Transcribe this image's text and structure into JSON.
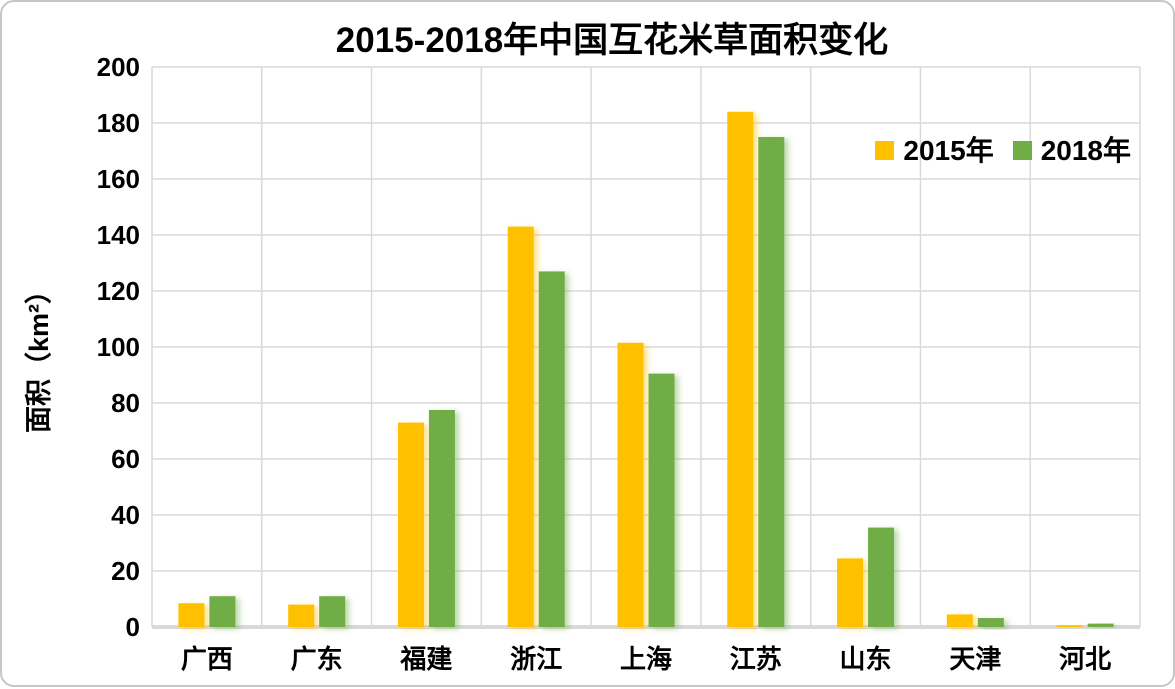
{
  "chart_data": {
    "type": "bar",
    "title": "2015-2018年中国互花米草面积变化",
    "ylabel": "面积（km²）",
    "xlabel": "",
    "categories": [
      "广西",
      "广东",
      "福建",
      "浙江",
      "上海",
      "江苏",
      "山东",
      "天津",
      "河北"
    ],
    "series": [
      {
        "name": "2015年",
        "color": "#FFC000",
        "values": [
          8.5,
          8.0,
          73.0,
          143.0,
          101.5,
          184.0,
          24.5,
          4.5,
          0.6
        ]
      },
      {
        "name": "2018年",
        "color": "#70AD47",
        "values": [
          11.0,
          11.0,
          77.5,
          127.0,
          90.5,
          175.0,
          35.5,
          3.2,
          1.2
        ]
      }
    ],
    "ylim": [
      0,
      200
    ],
    "ytick_step": 20,
    "ytick_labels": [
      "0",
      "20",
      "40",
      "60",
      "80",
      "100",
      "120",
      "140",
      "160",
      "180",
      "200"
    ],
    "grid": "horizontal and vertical gridlines on",
    "legend_position": "top-right inside plot",
    "colors": {
      "gridline": "#D9D9D9",
      "axis_line": "#D9D9D9",
      "text": "#000000",
      "background": "#FFFFFF",
      "card_border": "#C6C6C6"
    }
  }
}
